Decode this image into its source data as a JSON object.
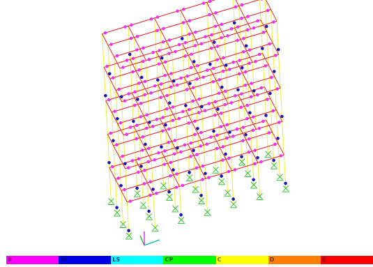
{
  "legend": [
    {
      "label": "B",
      "color": "#ff00ff",
      "text_color": "#8a008a"
    },
    {
      "label": "IO",
      "color": "#0000e6",
      "text_color": "#000080"
    },
    {
      "label": "LS",
      "color": "#00ffff",
      "text_color": "#00308a"
    },
    {
      "label": "CP",
      "color": "#00ff00",
      "text_color": "#004d00"
    },
    {
      "label": "C",
      "color": "#ffff00",
      "text_color": "#6b6b00"
    },
    {
      "label": "D",
      "color": "#ff8000",
      "text_color": "#6b3500"
    },
    {
      "label": "E",
      "color": "#ff0000",
      "text_color": "#6b0000"
    }
  ],
  "colors": {
    "column": "#f2ee4a",
    "beam": "#ea2a2a",
    "hinge_B": "#f032f0",
    "hinge_IO": "#1515b4",
    "support": "#2ec22e",
    "axis_x": "#00bcbc",
    "axis_y": "#00c000",
    "axis_z": "#e000e0"
  }
}
